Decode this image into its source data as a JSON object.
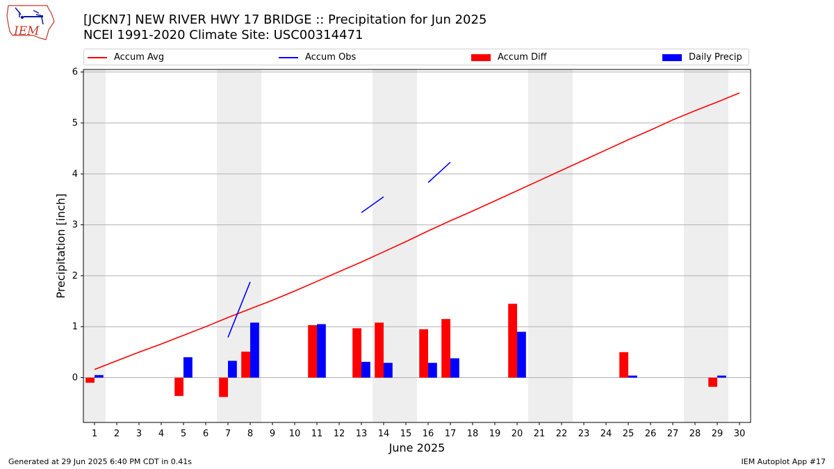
{
  "header": {
    "logo_text": "IEM",
    "title_line1": "[JCKN7] NEW RIVER HWY 17 BRIDGE :: Precipitation for Jun 2025",
    "title_line2": "NCEI 1991-2020 Climate Site: USC00314471"
  },
  "legend": {
    "placement": "top",
    "items": [
      {
        "label": "Accum Avg",
        "kind": "line",
        "color": "#ff0000"
      },
      {
        "label": "Accum Obs",
        "kind": "line",
        "color": "#0000ff"
      },
      {
        "label": "Accum Diff",
        "kind": "bar",
        "color": "#ff0000"
      },
      {
        "label": "Daily Precip",
        "kind": "bar",
        "color": "#0000ff"
      }
    ]
  },
  "footer": {
    "left": "Generated at 29 Jun 2025 6:40 PM CDT in 0.41s",
    "right": "IEM Autoplot App #17"
  },
  "chart_data": {
    "type": "bar",
    "xlabel": "June 2025",
    "ylabel": "Precipitation [inch]",
    "xlim": [
      0.5,
      30.5
    ],
    "ylim": [
      -0.88,
      6.05
    ],
    "yticks": [
      0,
      1,
      2,
      3,
      4,
      5,
      6
    ],
    "x": [
      1,
      2,
      3,
      4,
      5,
      6,
      7,
      8,
      9,
      10,
      11,
      12,
      13,
      14,
      15,
      16,
      17,
      18,
      19,
      20,
      21,
      22,
      23,
      24,
      25,
      26,
      27,
      28,
      29,
      30
    ],
    "grid": "horizontal",
    "weekend_shading": [
      [
        0.5,
        1.5
      ],
      [
        6.5,
        8.5
      ],
      [
        13.5,
        15.5
      ],
      [
        20.5,
        22.5
      ],
      [
        27.5,
        29.5
      ]
    ],
    "series": [
      {
        "name": "Accum Avg",
        "type": "line",
        "color": "#ff0000",
        "values": [
          0.16,
          0.33,
          0.5,
          0.66,
          0.83,
          1.0,
          1.18,
          1.35,
          1.52,
          1.7,
          1.89,
          2.08,
          2.27,
          2.47,
          2.67,
          2.88,
          3.08,
          3.27,
          3.47,
          3.67,
          3.87,
          4.07,
          4.27,
          4.47,
          4.67,
          4.86,
          5.06,
          5.24,
          5.41,
          5.59
        ]
      },
      {
        "name": "Accum Obs",
        "type": "line",
        "color": "#0000ff",
        "values": [
          null,
          null,
          null,
          null,
          null,
          null,
          0.79,
          1.88,
          null,
          null,
          null,
          null,
          3.24,
          3.55,
          null,
          3.83,
          4.23,
          null,
          null,
          null,
          null,
          null,
          null,
          null,
          null,
          null,
          null,
          null,
          null,
          null
        ]
      },
      {
        "name": "Accum Diff",
        "type": "bar",
        "color": "#ff0000",
        "values": [
          -0.1,
          0,
          0,
          0,
          -0.36,
          0,
          -0.38,
          0.51,
          0,
          0,
          1.03,
          0,
          0.97,
          1.08,
          0,
          0.95,
          1.15,
          0,
          0,
          1.45,
          0,
          0,
          0,
          0,
          0.5,
          0,
          0,
          0,
          -0.18,
          0
        ]
      },
      {
        "name": "Daily Precip",
        "type": "bar",
        "color": "#0000ff",
        "values": [
          0.05,
          0,
          0,
          0,
          0.4,
          0,
          0.33,
          1.08,
          0,
          0,
          1.05,
          0,
          0.31,
          0.29,
          0,
          0.29,
          0.38,
          0,
          0,
          0.9,
          0,
          0,
          0,
          0,
          0.04,
          0,
          0,
          0,
          0.04,
          0
        ]
      }
    ]
  }
}
